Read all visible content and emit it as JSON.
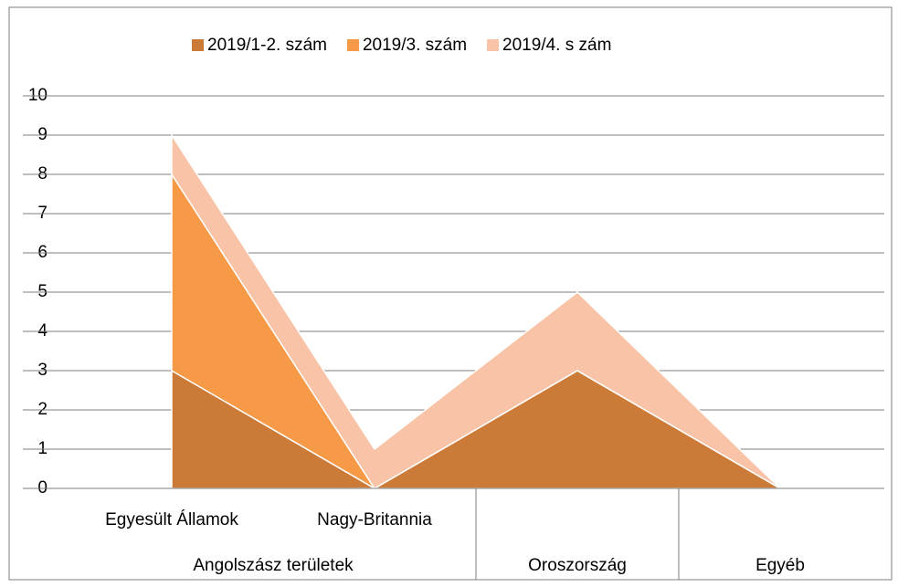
{
  "chart_data": {
    "type": "stacked_area",
    "groups": [
      {
        "name": "Angolszász területek",
        "categories": [
          "Egyesült Államok",
          "Nagy-Britannia"
        ]
      },
      {
        "name": "Oroszország",
        "categories": [
          null
        ]
      },
      {
        "name": "Egyéb",
        "categories": [
          null
        ]
      }
    ],
    "series": [
      {
        "name": "2019/1-2. szám",
        "color": "#cc7a37",
        "values": [
          3,
          0,
          3,
          0
        ]
      },
      {
        "name": "2019/3. szám",
        "color": "#f79a48",
        "values": [
          5,
          0,
          0,
          0
        ]
      },
      {
        "name": "2019/4. s zám",
        "color": "#f8c3a6",
        "values": [
          1,
          1,
          2,
          0
        ]
      }
    ],
    "ylim": [
      0,
      10
    ],
    "yticks": [
      0,
      1,
      2,
      3,
      4,
      5,
      6,
      7,
      8,
      9,
      10
    ],
    "grid": true,
    "legend": "top"
  }
}
